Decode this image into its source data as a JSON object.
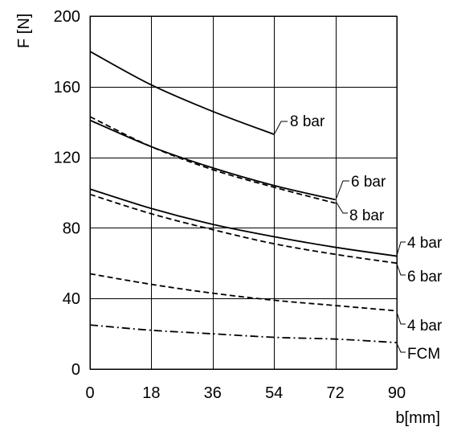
{
  "chart_data": {
    "type": "line",
    "title": "",
    "xlabel": "b[mm]",
    "ylabel": "F [N]",
    "xlim": [
      0,
      90
    ],
    "ylim": [
      0,
      200
    ],
    "xticks": [
      0,
      18,
      36,
      54,
      72,
      90
    ],
    "yticks": [
      0,
      40,
      80,
      120,
      160,
      200
    ],
    "grid": true,
    "legend": "none",
    "series": [
      {
        "label": "8 bar",
        "style": "solid",
        "x": [
          0,
          18,
          36,
          54
        ],
        "y": [
          180,
          161,
          146,
          133
        ]
      },
      {
        "label": "6 bar",
        "style": "solid",
        "x": [
          0,
          18,
          36,
          54,
          72
        ],
        "y": [
          141,
          126,
          114,
          104,
          96
        ]
      },
      {
        "label": "4 bar",
        "style": "solid",
        "x": [
          0,
          18,
          36,
          54,
          72,
          90
        ],
        "y": [
          102,
          91,
          82,
          75,
          69,
          64
        ]
      },
      {
        "label": "8 bar",
        "style": "dashed",
        "x": [
          0,
          18,
          36,
          54,
          72
        ],
        "y": [
          143,
          126,
          113,
          103,
          94
        ]
      },
      {
        "label": "6 bar",
        "style": "dashed",
        "x": [
          0,
          18,
          36,
          54,
          72,
          90
        ],
        "y": [
          99,
          88,
          79,
          71,
          65,
          60
        ]
      },
      {
        "label": "4 bar",
        "style": "dashed",
        "x": [
          0,
          18,
          36,
          54,
          72,
          90
        ],
        "y": [
          54,
          48,
          43,
          39,
          36,
          33
        ]
      },
      {
        "label": "FCM",
        "style": "dashdot",
        "x": [
          0,
          18,
          36,
          54,
          72,
          90
        ],
        "y": [
          25,
          22,
          20,
          18,
          17,
          15
        ]
      }
    ]
  }
}
